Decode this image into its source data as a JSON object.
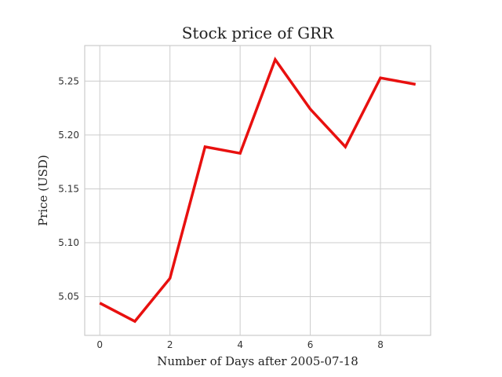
{
  "chart_data": {
    "type": "line",
    "title": "Stock price of GRR",
    "xlabel": "Number of Days after 2005-07-18",
    "ylabel": "Price (USD)",
    "x": [
      0,
      1,
      2,
      3,
      4,
      5,
      6,
      7,
      8,
      9
    ],
    "series": [
      {
        "values": [
          5.044,
          5.027,
          5.067,
          5.189,
          5.183,
          5.27,
          5.224,
          5.189,
          5.253,
          5.247
        ]
      }
    ],
    "xlim": [
      -0.43,
      9.43
    ],
    "ylim": [
      5.014,
      5.283
    ],
    "xticks": [
      0,
      2,
      4,
      6,
      8
    ],
    "yticks": [
      5.05,
      5.1,
      5.15,
      5.2,
      5.25
    ],
    "ytick_labels": [
      "5.05",
      "5.10",
      "5.15",
      "5.20",
      "5.25"
    ],
    "grid": true,
    "legend": "none",
    "line_color": "#e8100f"
  }
}
